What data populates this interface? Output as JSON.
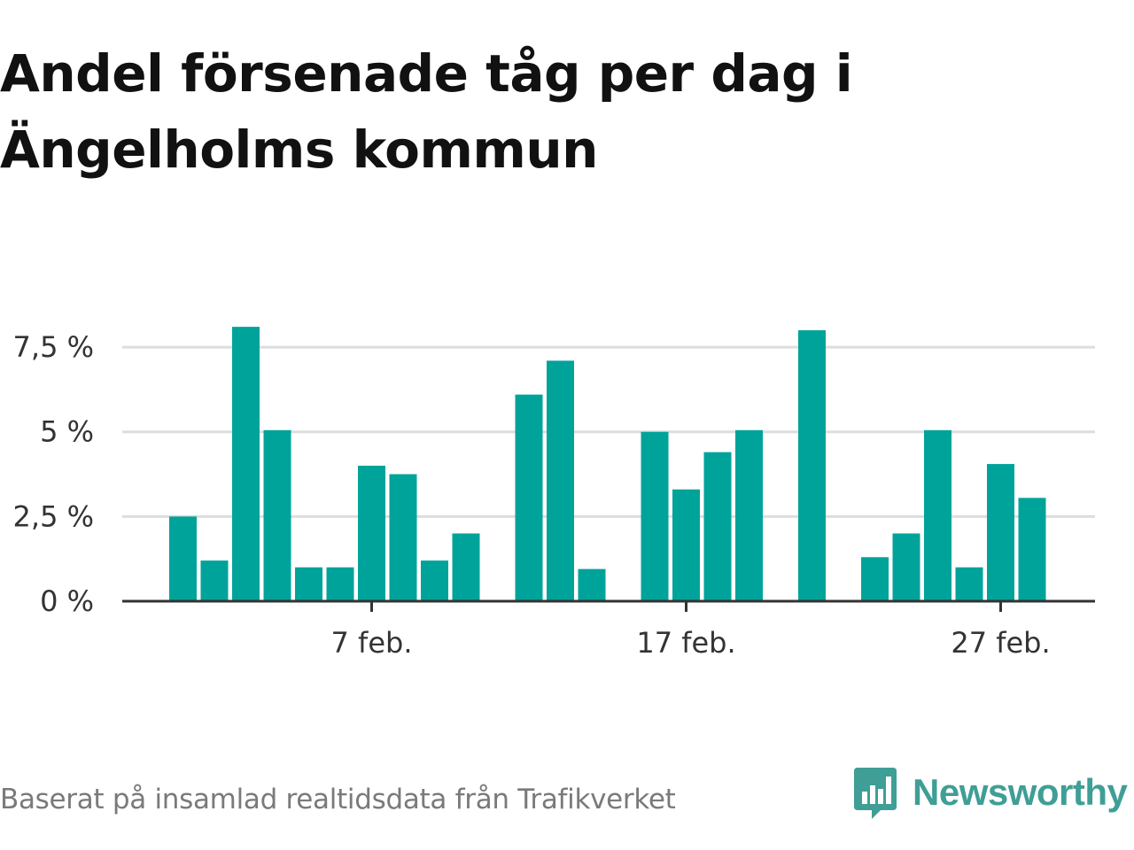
{
  "title": "Andel försenade tåg per dag i Ängelholms kommun",
  "footer": {
    "source": "Baserat på insamlad realtidsdata från Trafikverket"
  },
  "brand": {
    "name": "Newsworthy",
    "color": "#3f9e96",
    "icon": "bar-chart-speech-bubble-icon"
  },
  "colors": {
    "bar": "#00a39a",
    "grid": "#dddddd",
    "axis": "#333333",
    "text": "#333333"
  },
  "chart_data": {
    "type": "bar",
    "x": [
      "2024-02-01",
      "2024-02-02",
      "2024-02-03",
      "2024-02-04",
      "2024-02-05",
      "2024-02-06",
      "2024-02-07",
      "2024-02-08",
      "2024-02-09",
      "2024-02-10",
      "2024-02-11",
      "2024-02-12",
      "2024-02-13",
      "2024-02-14",
      "2024-02-15",
      "2024-02-16",
      "2024-02-17",
      "2024-02-18",
      "2024-02-19",
      "2024-02-20",
      "2024-02-21",
      "2024-02-22",
      "2024-02-23",
      "2024-02-24",
      "2024-02-25",
      "2024-02-26",
      "2024-02-27",
      "2024-02-28",
      "2024-02-29"
    ],
    "values": [
      2.5,
      1.2,
      8.1,
      5.05,
      1.0,
      1.0,
      4.0,
      3.75,
      1.2,
      2.0,
      null,
      6.1,
      7.1,
      0.95,
      null,
      5.0,
      3.3,
      4.4,
      5.05,
      null,
      8.0,
      null,
      1.3,
      2.0,
      5.05,
      1.0,
      4.05,
      3.05,
      null
    ],
    "ylim": [
      0,
      8.6
    ],
    "yticks": [
      0,
      2.5,
      5,
      7.5
    ],
    "ytick_labels": [
      "0 %",
      "2,5 %",
      "5 %",
      "7,5 %"
    ],
    "xticks": [
      "2024-02-07",
      "2024-02-17",
      "2024-02-27"
    ],
    "xtick_labels": [
      "7 feb.",
      "17 feb.",
      "27 feb."
    ],
    "grid": true,
    "legend": "none",
    "xlabel": "",
    "ylabel": ""
  }
}
